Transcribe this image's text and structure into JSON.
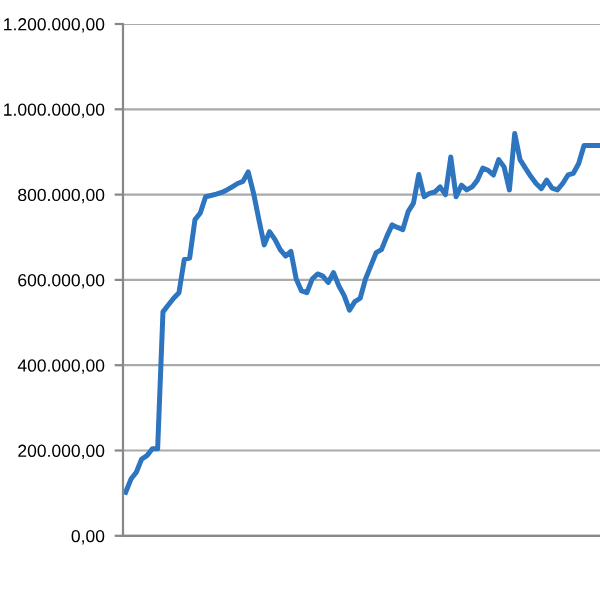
{
  "chart_data": {
    "type": "line",
    "tick_labels": "y",
    "grid": "y",
    "ylim": [
      0,
      1200000
    ],
    "yticks": [
      {
        "value": 0,
        "label": "0,00"
      },
      {
        "value": 200000,
        "label": "200.000,00"
      },
      {
        "value": 400000,
        "label": "400.000,00"
      },
      {
        "value": 600000,
        "label": "600.000,00"
      },
      {
        "value": 800000,
        "label": "800.000,00"
      },
      {
        "value": 1000000,
        "label": "1.000.000,00"
      },
      {
        "value": 1200000,
        "label": "1.200.000,00"
      }
    ],
    "categories": [
      null,
      null,
      null,
      null,
      null,
      null,
      null,
      null,
      null,
      null,
      null,
      null,
      null,
      null,
      null,
      null,
      null,
      null,
      null,
      null,
      null,
      null,
      null,
      null,
      null,
      null,
      null,
      null,
      null,
      null,
      null,
      null,
      null,
      null,
      null,
      null,
      null,
      null,
      null,
      null,
      null,
      null,
      null,
      null,
      null,
      null,
      null,
      null,
      null,
      null,
      null,
      null,
      null,
      null,
      null,
      null,
      null,
      null,
      null,
      null,
      null,
      null,
      null,
      null,
      null,
      null,
      null,
      null,
      null,
      null,
      null,
      null,
      null,
      null,
      null,
      null,
      null,
      null,
      null,
      null,
      null,
      null,
      null,
      null,
      null,
      null,
      null,
      null,
      null,
      null
    ],
    "series": [
      {
        "color": "#2e75c0",
        "values": [
          102000,
          133000,
          149000,
          180000,
          188000,
          204000,
          204000,
          525000,
          541000,
          557000,
          570000,
          648000,
          651000,
          741000,
          757000,
          795000,
          798000,
          801000,
          805000,
          811000,
          818000,
          826000,
          831000,
          853000,
          803000,
          741000,
          682000,
          713000,
          695000,
          671000,
          656000,
          667000,
          602000,
          574000,
          570000,
          602000,
          614000,
          609000,
          594000,
          617000,
          586000,
          563000,
          529000,
          549000,
          557000,
          602000,
          633000,
          664000,
          671000,
          702000,
          729000,
          723000,
          718000,
          760000,
          780000,
          847000,
          795000,
          803000,
          806000,
          818000,
          800000,
          888000,
          795000,
          822000,
          811000,
          818000,
          834000,
          862000,
          857000,
          846000,
          882000,
          865000,
          811000,
          943000,
          882000,
          862000,
          843000,
          826000,
          814000,
          834000,
          815000,
          811000,
          826000,
          846000,
          850000,
          873000,
          915000,
          915000,
          915000,
          915000
        ]
      }
    ]
  }
}
